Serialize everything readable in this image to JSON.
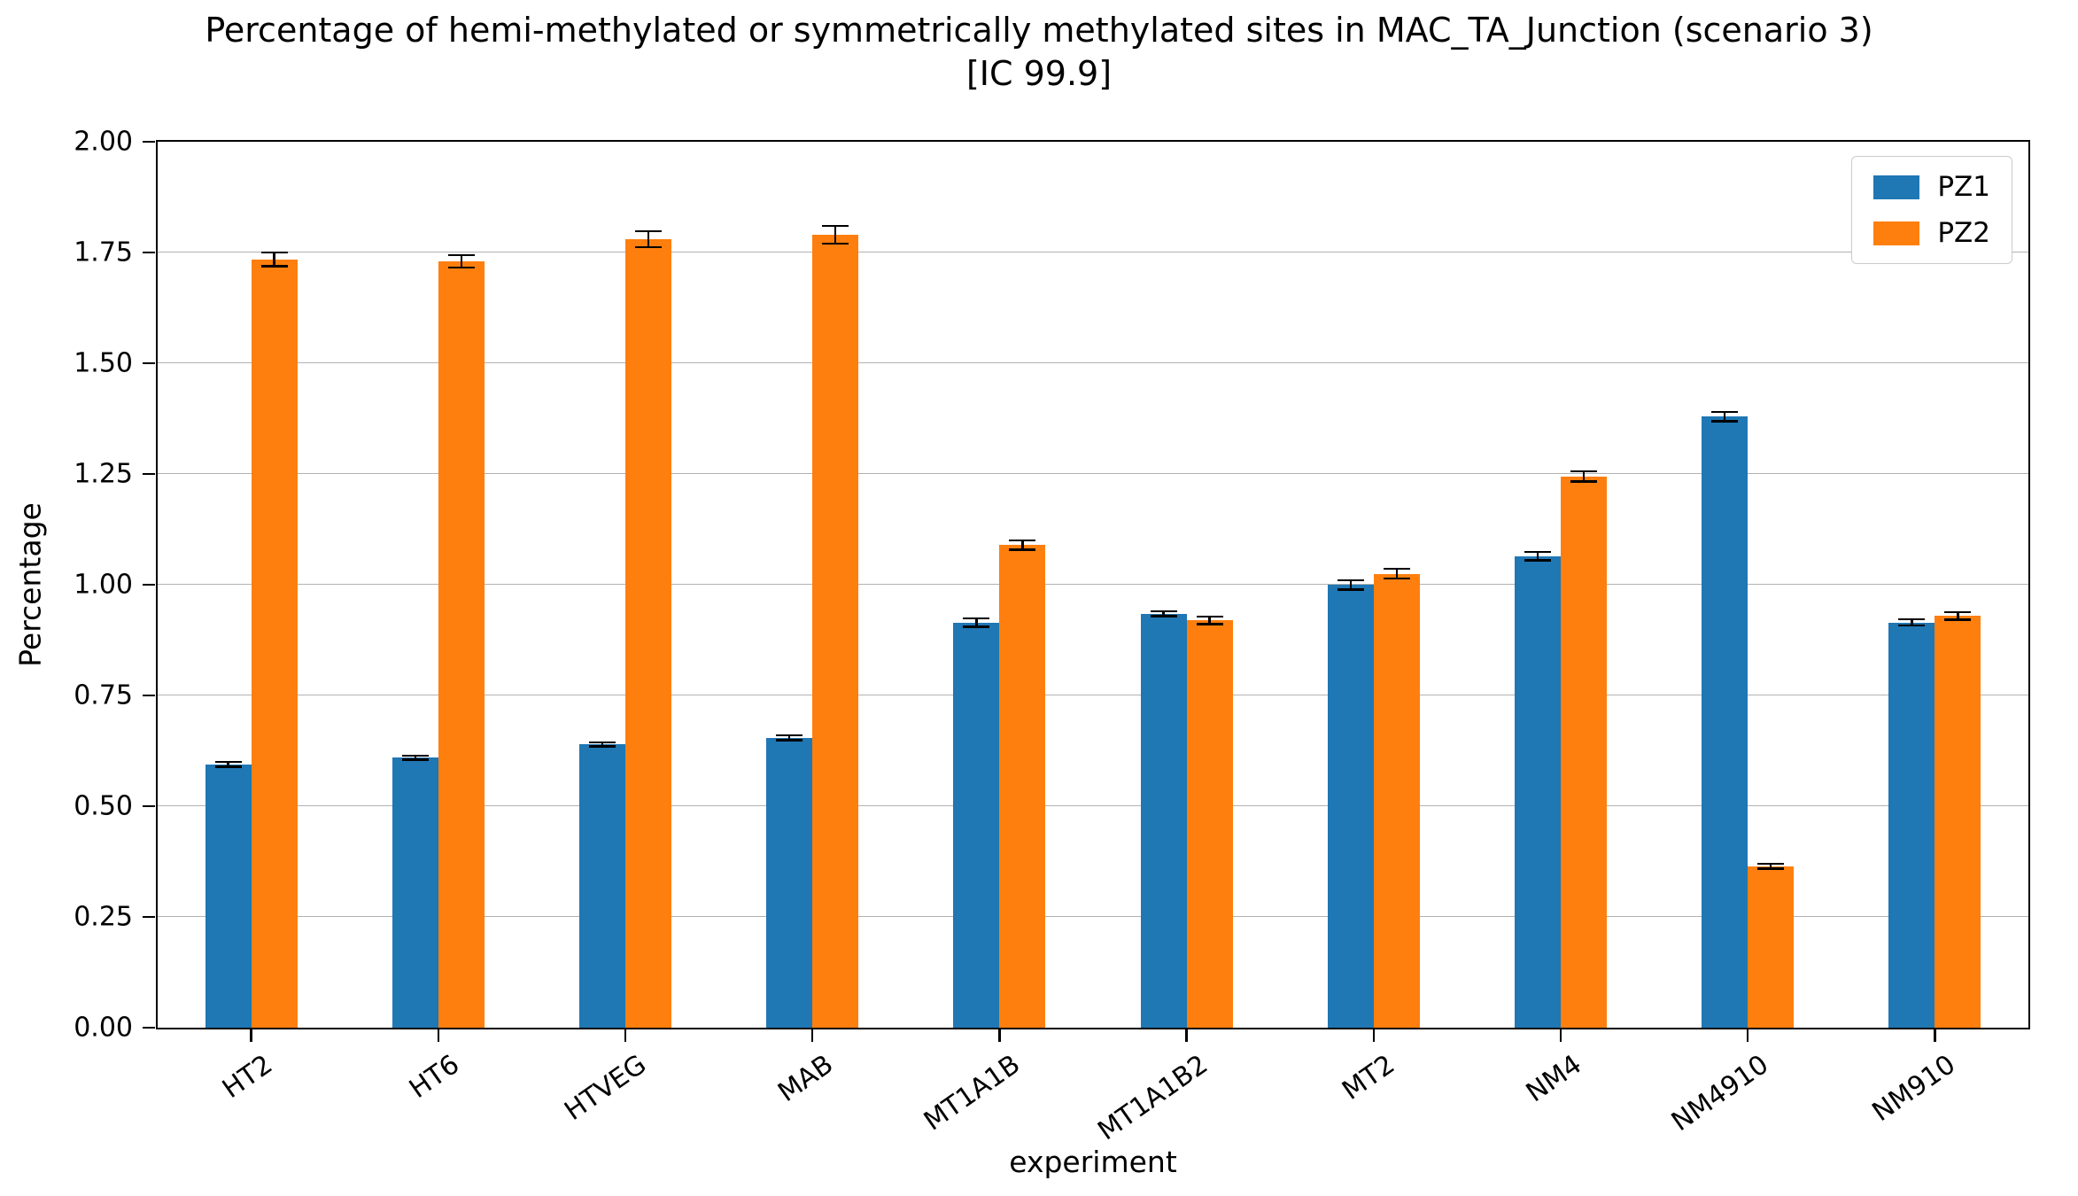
{
  "title": {
    "line1": "Percentage of hemi-methylated or symmetrically methylated sites in MAC_TA_Junction (scenario 3)",
    "line2": "[IC 99.9]"
  },
  "chart_data": {
    "type": "bar",
    "title": "Percentage of hemi-methylated or symmetrically methylated sites in MAC_TA_Junction (scenario 3) [IC 99.9]",
    "xlabel": "experiment",
    "ylabel": "Percentage",
    "ylim": [
      0,
      2.0
    ],
    "yticks": [
      0.0,
      0.25,
      0.5,
      0.75,
      1.0,
      1.25,
      1.5,
      1.75,
      2.0
    ],
    "ytick_labels": [
      "0.00",
      "0.25",
      "0.50",
      "0.75",
      "1.00",
      "1.25",
      "1.50",
      "1.75",
      "2.00"
    ],
    "grid": true,
    "legend_position": "upper right",
    "categories": [
      "HT2",
      "HT6",
      "HTVEG",
      "MAB",
      "MT1A1B",
      "MT1A1B2",
      "MT2",
      "NM4",
      "NM4910",
      "NM910"
    ],
    "series": [
      {
        "name": "PZ1",
        "color": "#1f77b4",
        "values": [
          0.595,
          0.61,
          0.64,
          0.655,
          0.915,
          0.935,
          1.0,
          1.065,
          1.38,
          0.915
        ],
        "errors": [
          0.008,
          0.007,
          0.007,
          0.008,
          0.012,
          0.008,
          0.013,
          0.012,
          0.013,
          0.009
        ]
      },
      {
        "name": "PZ2",
        "color": "#ff7f0e",
        "values": [
          1.735,
          1.73,
          1.78,
          1.79,
          1.09,
          0.92,
          1.025,
          1.245,
          0.365,
          0.93
        ],
        "errors": [
          0.018,
          0.016,
          0.02,
          0.022,
          0.013,
          0.011,
          0.013,
          0.014,
          0.008,
          0.011
        ]
      }
    ]
  },
  "colors": {
    "pz1": "#1f77b4",
    "pz2": "#ff7f0e",
    "grid": "#b2b2b2",
    "errorbar": "#000000",
    "spine": "#000000",
    "background": "#ffffff"
  }
}
